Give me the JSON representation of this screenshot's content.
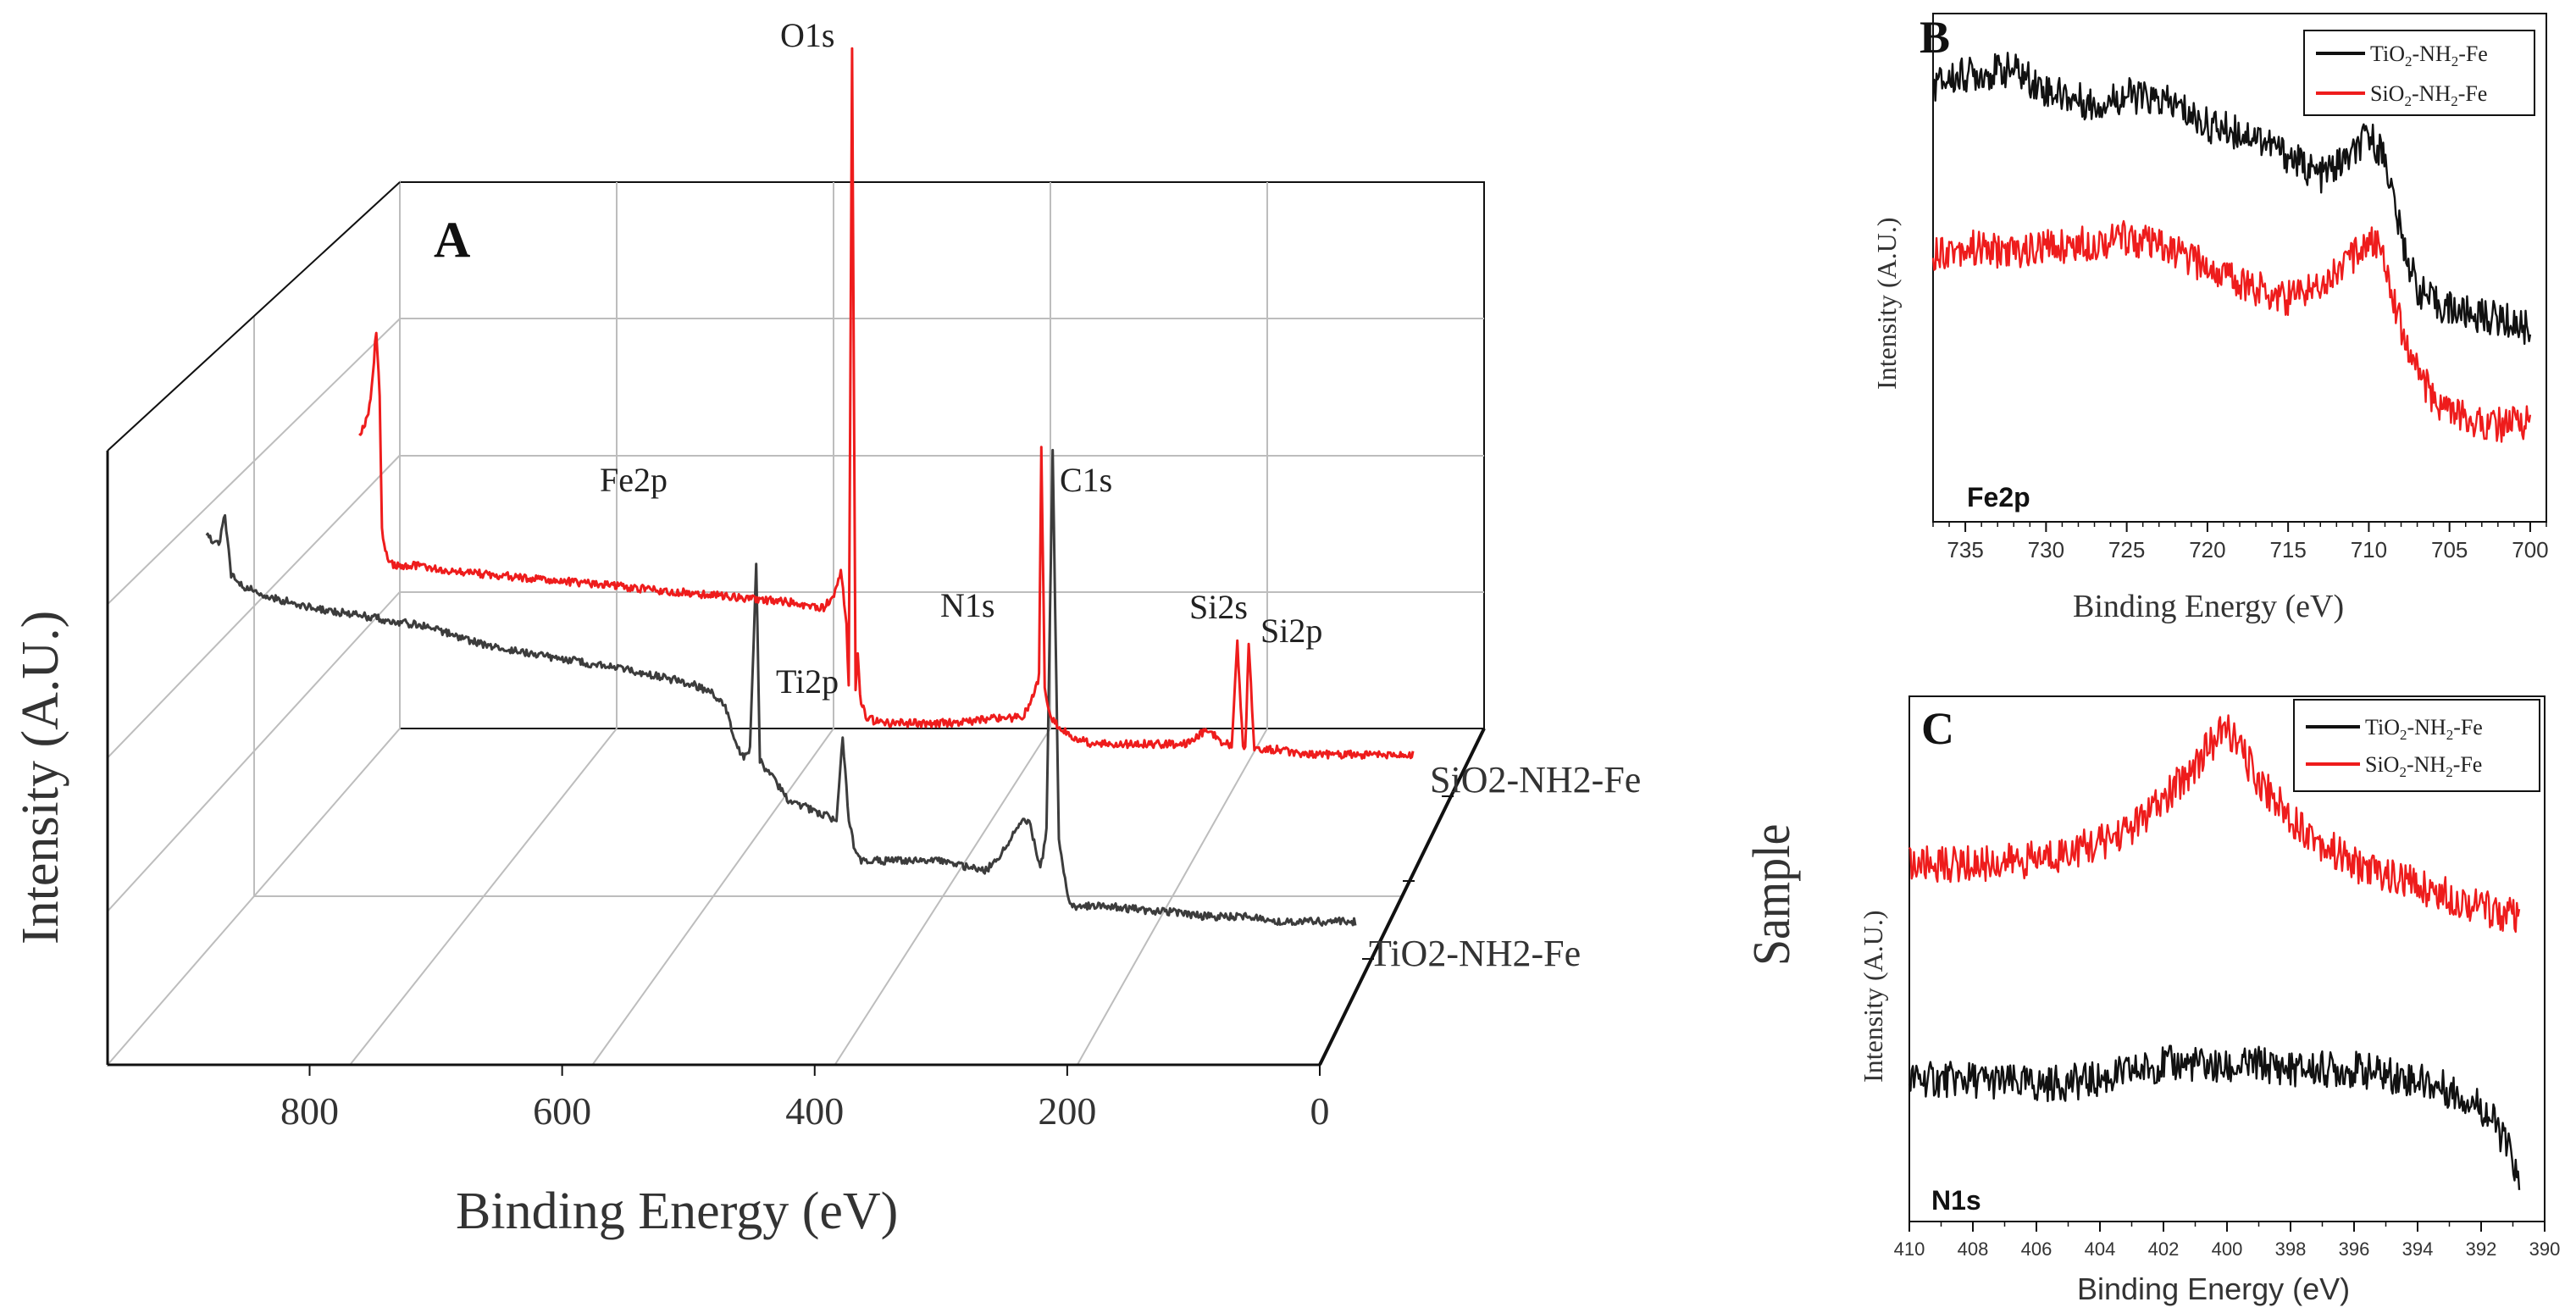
{
  "colors": {
    "black_series": "#111111",
    "grey_series": "#3c3c3c",
    "red_series": "#ee1c1c",
    "grid": "#bdbdbd",
    "axis": "#111111"
  },
  "chart_data": [
    {
      "panel": "A",
      "type": "line",
      "style": "3d-waterfall",
      "xlabel": "Binding Energy (eV)",
      "ylabel": "Intensity (A.U.)",
      "zlabel": "Sample",
      "xticks": [
        "800",
        "600",
        "400",
        "200",
        "0"
      ],
      "xlim": [
        960,
        0
      ],
      "categories": [
        "TiO2-NH2-Fe",
        "SiO2-NH2-Fe"
      ],
      "series": [
        {
          "name": "TiO2-NH2-Fe",
          "color": "grey",
          "x": [
            930,
            920,
            915,
            910,
            900,
            880,
            850,
            800,
            750,
            700,
            650,
            600,
            560,
            540,
            520,
            510,
            505,
            500,
            495,
            490,
            485,
            482,
            478,
            470,
            460,
            440,
            420,
            415,
            410,
            405,
            400,
            380,
            360,
            340,
            320,
            300,
            290,
            285,
            280,
            275,
            270,
            265,
            260,
            255,
            250,
            245,
            240,
            232,
            230,
            225,
            200,
            160,
            150,
            120,
            100,
            80,
            60,
            40,
            20,
            0
          ],
          "y": [
            0.78,
            0.76,
            0.82,
            0.7,
            0.68,
            0.66,
            0.64,
            0.62,
            0.6,
            0.56,
            0.54,
            0.52,
            0.5,
            0.49,
            0.47,
            0.44,
            0.4,
            0.36,
            0.34,
            0.36,
            0.72,
            0.34,
            0.32,
            0.3,
            0.26,
            0.24,
            0.22,
            0.38,
            0.22,
            0.16,
            0.14,
            0.14,
            0.14,
            0.14,
            0.13,
            0.12,
            0.14,
            0.16,
            0.18,
            0.2,
            0.22,
            0.22,
            0.18,
            0.12,
            0.2,
            0.95,
            0.18,
            0.06,
            0.05,
            0.05,
            0.05,
            0.04,
            0.04,
            0.03,
            0.03,
            0.03,
            0.02,
            0.02,
            0.02,
            0.02
          ]
        },
        {
          "name": "SiO2-NH2-Fe",
          "color": "red",
          "x": [
            930,
            925,
            920,
            915,
            912,
            910,
            905,
            900,
            880,
            850,
            800,
            750,
            700,
            650,
            600,
            550,
            520,
            510,
            505,
            500,
            498,
            495,
            492,
            490,
            488,
            482,
            470,
            420,
            400,
            370,
            345,
            340,
            335,
            330,
            328,
            325,
            320,
            300,
            280,
            260,
            240,
            200,
            180,
            170,
            160,
            155,
            150,
            148,
            145,
            140,
            120,
            100,
            80,
            60,
            55,
            50,
            40,
            30,
            20,
            10,
            0
          ],
          "y": [
            0.62,
            0.64,
            0.68,
            0.82,
            0.7,
            0.44,
            0.38,
            0.37,
            0.37,
            0.36,
            0.35,
            0.34,
            0.33,
            0.32,
            0.31,
            0.3,
            0.29,
            0.32,
            0.36,
            0.26,
            0.14,
            1.35,
            0.14,
            0.2,
            0.12,
            0.08,
            0.07,
            0.07,
            0.07,
            0.08,
            0.08,
            0.1,
            0.12,
            0.16,
            0.6,
            0.14,
            0.08,
            0.04,
            0.03,
            0.03,
            0.03,
            0.03,
            0.06,
            0.03,
            0.03,
            0.22,
            0.03,
            0.02,
            0.22,
            0.02,
            0.02,
            0.01,
            0.01,
            0.01,
            0.01,
            0.01,
            0.01,
            0.01,
            0.01,
            0.01,
            0.01
          ]
        }
      ],
      "annotations": [
        "O1s",
        "Fe2p",
        "C1s",
        "N1s",
        "Ti2p",
        "Si2s",
        "Si2p"
      ]
    },
    {
      "panel": "B",
      "type": "line",
      "xlabel": "Binding Energy (eV)",
      "ylabel": "Intensity (A.U.)",
      "inner_label": "Fe2p",
      "xticks": [
        "735",
        "730",
        "725",
        "720",
        "715",
        "710",
        "705",
        "700"
      ],
      "xlim": [
        737,
        699
      ],
      "series": [
        {
          "name": "TiO2-NH2-Fe",
          "legend": [
            "TiO",
            "2",
            "-NH",
            "2",
            "-Fe"
          ],
          "color": "black",
          "x": [
            737,
            735,
            732,
            730,
            727,
            725,
            722,
            720,
            717,
            715,
            713,
            711,
            710,
            709,
            708,
            707,
            706,
            705,
            704,
            702,
            700
          ],
          "y": [
            0.86,
            0.88,
            0.89,
            0.85,
            0.82,
            0.84,
            0.82,
            0.78,
            0.76,
            0.72,
            0.68,
            0.72,
            0.76,
            0.72,
            0.56,
            0.46,
            0.43,
            0.42,
            0.41,
            0.4,
            0.38
          ]
        },
        {
          "name": "SiO2-NH2-Fe",
          "legend": [
            "SiO",
            "2",
            "-NH",
            "2",
            "-Fe"
          ],
          "color": "red",
          "x": [
            737,
            735,
            732,
            730,
            727,
            725,
            722,
            720,
            717,
            715,
            713,
            711,
            710,
            709,
            708,
            707,
            706,
            705,
            704,
            702,
            700
          ],
          "y": [
            0.53,
            0.54,
            0.53,
            0.54,
            0.55,
            0.56,
            0.53,
            0.5,
            0.46,
            0.44,
            0.47,
            0.52,
            0.56,
            0.52,
            0.38,
            0.3,
            0.24,
            0.22,
            0.2,
            0.19,
            0.2
          ]
        }
      ]
    },
    {
      "panel": "C",
      "type": "line",
      "xlabel": "Binding Energy (eV)",
      "ylabel": "Intensity (A.U.)",
      "inner_label": "N1s",
      "xticks": [
        "410",
        "408",
        "406",
        "404",
        "402",
        "400",
        "398",
        "396",
        "394",
        "392",
        "390"
      ],
      "xlim": [
        410,
        390
      ],
      "series": [
        {
          "name": "TiO2-NH2-Fe",
          "legend": [
            "TiO",
            "2",
            "-NH",
            "2",
            "-Fe"
          ],
          "color": "black",
          "x": [
            410,
            408,
            406,
            404,
            402,
            401,
            400,
            399,
            398,
            396,
            394,
            393,
            392,
            391.5,
            391,
            390.8
          ],
          "y": [
            0.27,
            0.27,
            0.26,
            0.27,
            0.3,
            0.3,
            0.29,
            0.3,
            0.29,
            0.29,
            0.27,
            0.25,
            0.22,
            0.18,
            0.12,
            0.06
          ]
        },
        {
          "name": "SiO2-NH2-Fe",
          "legend": [
            "SiO",
            "2",
            "-NH",
            "2",
            "-Fe"
          ],
          "color": "red",
          "x": [
            410,
            408,
            406,
            404,
            403,
            402,
            401,
            400.5,
            400,
            399.5,
            399,
            398,
            397,
            396,
            394,
            392,
            391,
            390.8
          ],
          "y": [
            0.68,
            0.68,
            0.69,
            0.72,
            0.75,
            0.8,
            0.87,
            0.91,
            0.94,
            0.89,
            0.84,
            0.77,
            0.72,
            0.68,
            0.64,
            0.6,
            0.58,
            0.57
          ]
        }
      ]
    }
  ]
}
